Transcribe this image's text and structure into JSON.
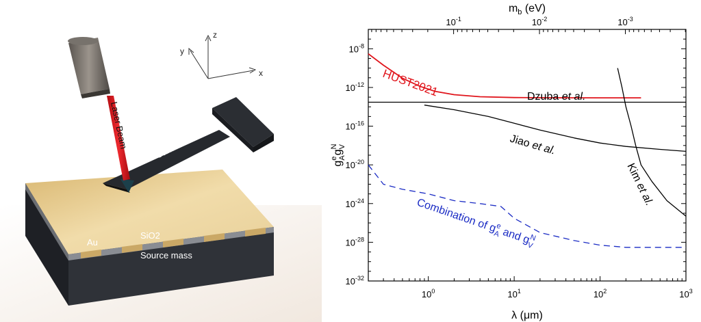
{
  "scene": {
    "axes_labels": {
      "x": "x",
      "y": "y",
      "z": "z"
    },
    "laser_label": "Laser Beam",
    "cantilever_label": "Cantilever",
    "au_label": "Au",
    "sio2_label": "SiO2",
    "source_mass_label": "Source mass",
    "colors": {
      "laser": "#e0141b",
      "gold": "#e6c98e",
      "block": "#2a2d33",
      "cantilever": "#2c2f34"
    }
  },
  "chart_data": {
    "type": "line",
    "xscale": "log",
    "yscale": "log",
    "xlim": [
      0.2,
      1000
    ],
    "ylim": [
      1e-32,
      1e-06
    ],
    "x_ticks": [
      {
        "value": 1,
        "base": "10",
        "exp": "0"
      },
      {
        "value": 10,
        "base": "10",
        "exp": "1"
      },
      {
        "value": 100,
        "base": "10",
        "exp": "2"
      },
      {
        "value": 1000,
        "base": "10",
        "exp": "3"
      }
    ],
    "y_ticks": [
      {
        "value": 1e-32,
        "base": "10",
        "exp": "-32"
      },
      {
        "value": 1e-28,
        "base": "10",
        "exp": "-28"
      },
      {
        "value": 1e-24,
        "base": "10",
        "exp": "-24"
      },
      {
        "value": 1e-20,
        "base": "10",
        "exp": "-20"
      },
      {
        "value": 1e-16,
        "base": "10",
        "exp": "-16"
      },
      {
        "value": 1e-12,
        "base": "10",
        "exp": "-12"
      },
      {
        "value": 1e-08,
        "base": "10",
        "exp": "-8"
      }
    ],
    "top_ticks": [
      {
        "lambda": 1.97,
        "base": "10",
        "exp": "-1"
      },
      {
        "lambda": 19.7,
        "base": "10",
        "exp": "-2"
      },
      {
        "lambda": 197,
        "base": "10",
        "exp": "-3"
      }
    ],
    "xlabel": {
      "main": "λ (",
      "mu": "μ",
      "rest": "m)"
    },
    "top_label": {
      "main": "m",
      "sub": "b",
      "rest": " (eV)"
    },
    "ylabel": {
      "g1": "g",
      "sup1": "e",
      "sub1": "A",
      "g2": "g",
      "sup2": "N",
      "sub2": "V"
    },
    "series": [
      {
        "name": "HUST2021",
        "color": "#e0141b",
        "dash": false,
        "x": [
          0.2,
          0.3,
          0.5,
          0.8,
          1.2,
          2,
          4,
          10,
          30,
          100,
          300
        ],
        "y": [
          3e-09,
          2e-10,
          9e-12,
          1.3e-12,
          4e-13,
          1.8e-13,
          1.1e-13,
          9e-14,
          8.6e-14,
          8.5e-14,
          8.5e-14
        ]
      },
      {
        "name": "Dzuba et al.",
        "color": "#000000",
        "dash": false,
        "x": [
          0.2,
          1000
        ],
        "y": [
          3e-14,
          3e-14
        ]
      },
      {
        "name": "Jiao et al.",
        "color": "#000000",
        "dash": false,
        "x": [
          0.9,
          2,
          5,
          10,
          20,
          50,
          100,
          200,
          500,
          1000
        ],
        "y": [
          1.5e-14,
          5e-15,
          1e-15,
          2e-16,
          4e-17,
          6e-18,
          1.8e-18,
          8e-19,
          4e-19,
          2.5e-19
        ]
      },
      {
        "name": "Kim et al.",
        "color": "#000000",
        "dash": false,
        "x": [
          160,
          180,
          200,
          230,
          260,
          300,
          400,
          600,
          1000
        ],
        "y": [
          1e-10,
          1e-12,
          1e-14,
          1e-16,
          1e-18,
          1e-20,
          2e-22,
          2e-24,
          5e-26
        ]
      },
      {
        "name": "Combination",
        "color": "#1a2bc4",
        "dash": true,
        "x": [
          0.2,
          0.3,
          0.5,
          1,
          2,
          4,
          7,
          10,
          20,
          50,
          100,
          200,
          500,
          1000
        ],
        "y": [
          1e-20,
          1e-22,
          3e-23,
          1e-23,
          2e-24,
          1e-24,
          5e-25,
          3e-26,
          1e-27,
          1.5e-28,
          5e-29,
          3e-29,
          3e-29,
          3e-29
        ]
      }
    ],
    "annotations": {
      "hust": "HUST2021",
      "dzuba": "Dzuba ",
      "dzuba_etal": "et al.",
      "jiao": "Jiao ",
      "jiao_etal": "et al.",
      "kim": "Kim ",
      "kim_etal": "et al.",
      "comb_pre": "Combination of g",
      "comb_sup1": "e",
      "comb_sub1": "A",
      "comb_mid": " and g",
      "comb_sup2": "N",
      "comb_sub2": "V"
    }
  }
}
